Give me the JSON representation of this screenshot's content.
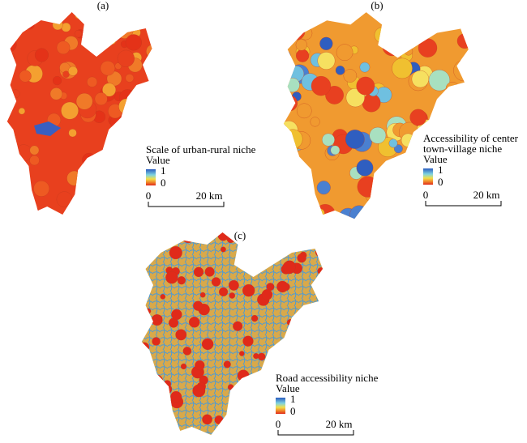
{
  "panels": [
    {
      "label": "(a)",
      "legend": {
        "title_lines": [
          "Scale of urban-rural niche"
        ],
        "value_title": "Value",
        "max": 1,
        "min": 0,
        "scale": [
          "0",
          "20 km"
        ]
      }
    },
    {
      "label": "(b)",
      "legend": {
        "title_lines": [
          "Accessibility of center",
          "town-village niche"
        ],
        "value_title": "Value",
        "max": 1,
        "min": 0,
        "scale": [
          "0",
          "20 km"
        ]
      }
    },
    {
      "label": "(c)",
      "legend": {
        "title_lines": [
          "Road accessibility niche"
        ],
        "value_title": "Value",
        "max": 1,
        "min": 0,
        "scale": [
          "0",
          "20 km"
        ]
      }
    }
  ]
}
